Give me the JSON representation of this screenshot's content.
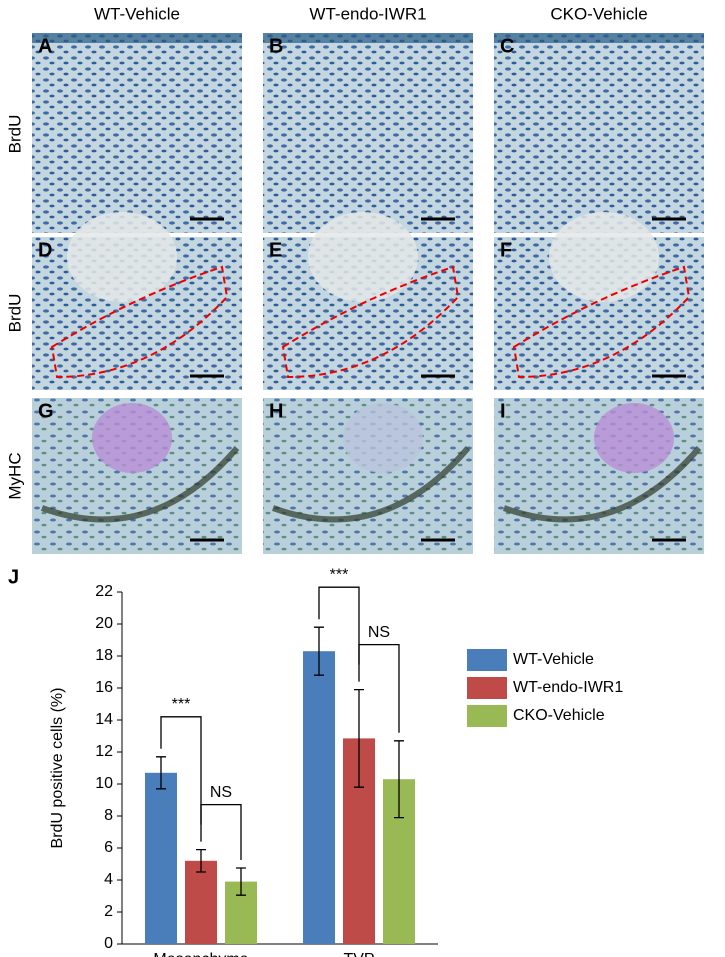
{
  "column_labels": [
    "WT-Vehicle",
    "WT-endo-IWR1",
    "CKO-Vehicle"
  ],
  "row_labels": [
    "BrdU",
    "BrdU",
    "MyHC"
  ],
  "panel_letters": [
    "A",
    "B",
    "C",
    "D",
    "E",
    "F",
    "G",
    "H",
    "I"
  ],
  "chart_data": {
    "type": "bar",
    "panel_letter": "J",
    "ylabel": "BrdU positive cells (%)",
    "categories": [
      "Mesenchyme",
      "TVP"
    ],
    "series": [
      {
        "name": "WT-Vehicle",
        "color": "#4a7ebb",
        "values": [
          10.7,
          18.3
        ],
        "errors": [
          1.0,
          1.5
        ]
      },
      {
        "name": "WT-endo-IWR1",
        "color": "#be4b48",
        "values": [
          5.2,
          12.85
        ],
        "errors": [
          0.7,
          3.05
        ]
      },
      {
        "name": "CKO-Vehicle",
        "color": "#98b954",
        "values": [
          3.9,
          10.3
        ],
        "errors": [
          0.85,
          2.4
        ]
      }
    ],
    "annotations": [
      "***",
      "NS",
      "***",
      "NS"
    ],
    "ylim": [
      0,
      22
    ],
    "yticks": [
      0,
      2,
      4,
      6,
      8,
      10,
      12,
      14,
      16,
      18,
      20,
      22
    ]
  }
}
